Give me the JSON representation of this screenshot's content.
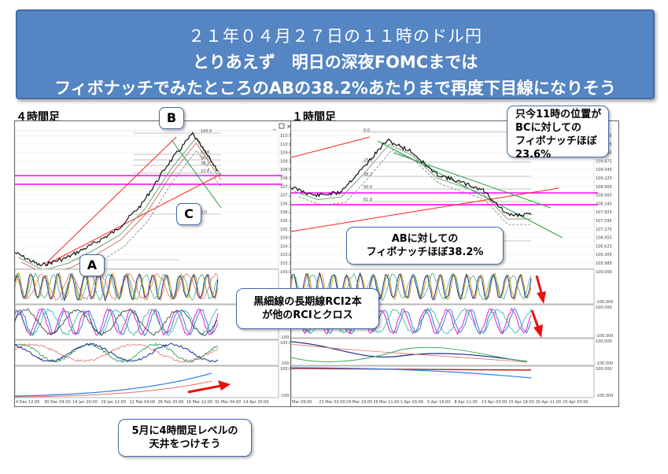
{
  "banner": {
    "line1": "２１年０４月２７日の１１時のドル円",
    "line2": "とりあえず　明日の深夜FOMCまでは",
    "line3": "フィボナッチでみたところのABの38.2%あたりまで再度下目線になりそう"
  },
  "left_chart": {
    "title": "４時間足",
    "labels": {
      "A": "A",
      "B": "B",
      "C": "C"
    },
    "price_ticks": [
      "110.590",
      "110.110",
      "109.630",
      "109.150",
      "108.665",
      "108.185",
      "107.705",
      "107.225",
      "106.745",
      "106.265",
      "105.785",
      "105.305",
      "104.825",
      "104.345",
      "103.860",
      "103.390"
    ],
    "date_ticks": [
      "4 Dec 12:00",
      "30 Dec 04:00",
      "14 Jan 20:00",
      "29 Jan 12:00",
      "12 Feb 04:00",
      "26 Feb 20:00",
      "16 Mar 12:00",
      "31 Mar 04:00",
      "14 Apr 20:00"
    ],
    "fib_levels": [
      "100.0",
      "61.8",
      "50.0",
      "38.2",
      "23.6",
      "0.0"
    ],
    "osc_ticks": [
      "100.000",
      "-100.000"
    ]
  },
  "right_chart": {
    "title": "１時間足",
    "price_ticks": [
      "110.835",
      "110.515",
      "110.195",
      "109.875",
      "109.545",
      "109.225",
      "108.905",
      "108.565",
      "108.245",
      "107.925",
      "107.595",
      "107.275",
      "106.955",
      "106.625",
      "106.305",
      "105.985"
    ],
    "date_ticks": [
      "Mar 09:00",
      "22 Mar 02:00",
      "24 Mar 19:00",
      "29 Mar 11:00",
      "1 Apr 03:00",
      "5 Apr 19:00",
      "8 Apr 11:00",
      "13 Apr 03:00",
      "15 Apr 19:00",
      "20 Apr 11:00",
      "23 Apr 03:00"
    ],
    "fib_levels": [
      "0.0",
      "23.6",
      "38.2",
      "50.0",
      "61.8",
      "100.0"
    ],
    "osc_ticks": [
      "100.000",
      "-100.000"
    ]
  },
  "callouts": {
    "top_right": [
      "只今11時の位置が",
      "BCに対しての",
      "フィボナッチほぼ23.6%"
    ],
    "ab_fib": [
      "ABに対しての",
      "フィボナッチほぼ38.2%"
    ],
    "rci": [
      "黒細線の長期線RCI2本",
      "が他のRCIとクロス"
    ],
    "may": [
      "5月に4時間足レベルの",
      "天井をつけそう"
    ]
  },
  "colors": {
    "banner": "#5585c2",
    "magenta_line": "#ff00ff",
    "red_trend": "#ff2020",
    "green_trend": "#20a040",
    "arrow": "#e81010"
  },
  "chart_data": [
    {
      "type": "line",
      "title": "４時間足",
      "ylim": [
        103.39,
        110.59
      ],
      "x": [
        "4 Dec 12:00",
        "30 Dec 04:00",
        "14 Jan 20:00",
        "29 Jan 12:00",
        "12 Feb 04:00",
        "26 Feb 20:00",
        "16 Mar 12:00",
        "31 Mar 04:00",
        "14 Apr 20:00"
      ],
      "series": [
        {
          "values": [
            104.2,
            103.5,
            103.9,
            104.6,
            105.4,
            106.8,
            108.9,
            110.6,
            108.6
          ]
        }
      ]
    },
    {
      "type": "line",
      "title": "１時間足",
      "ylim": [
        105.985,
        110.835
      ],
      "x": [
        "Mar 09:00",
        "22 Mar 02:00",
        "24 Mar 19:00",
        "29 Mar 11:00",
        "1 Apr 03:00",
        "5 Apr 19:00",
        "8 Apr 11:00",
        "13 Apr 03:00",
        "15 Apr 19:00",
        "20 Apr 11:00",
        "23 Apr 03:00"
      ],
      "series": [
        {
          "values": [
            108.9,
            108.6,
            108.7,
            109.6,
            110.6,
            110.2,
            109.4,
            109.1,
            108.8,
            107.9,
            107.9
          ]
        }
      ]
    }
  ]
}
